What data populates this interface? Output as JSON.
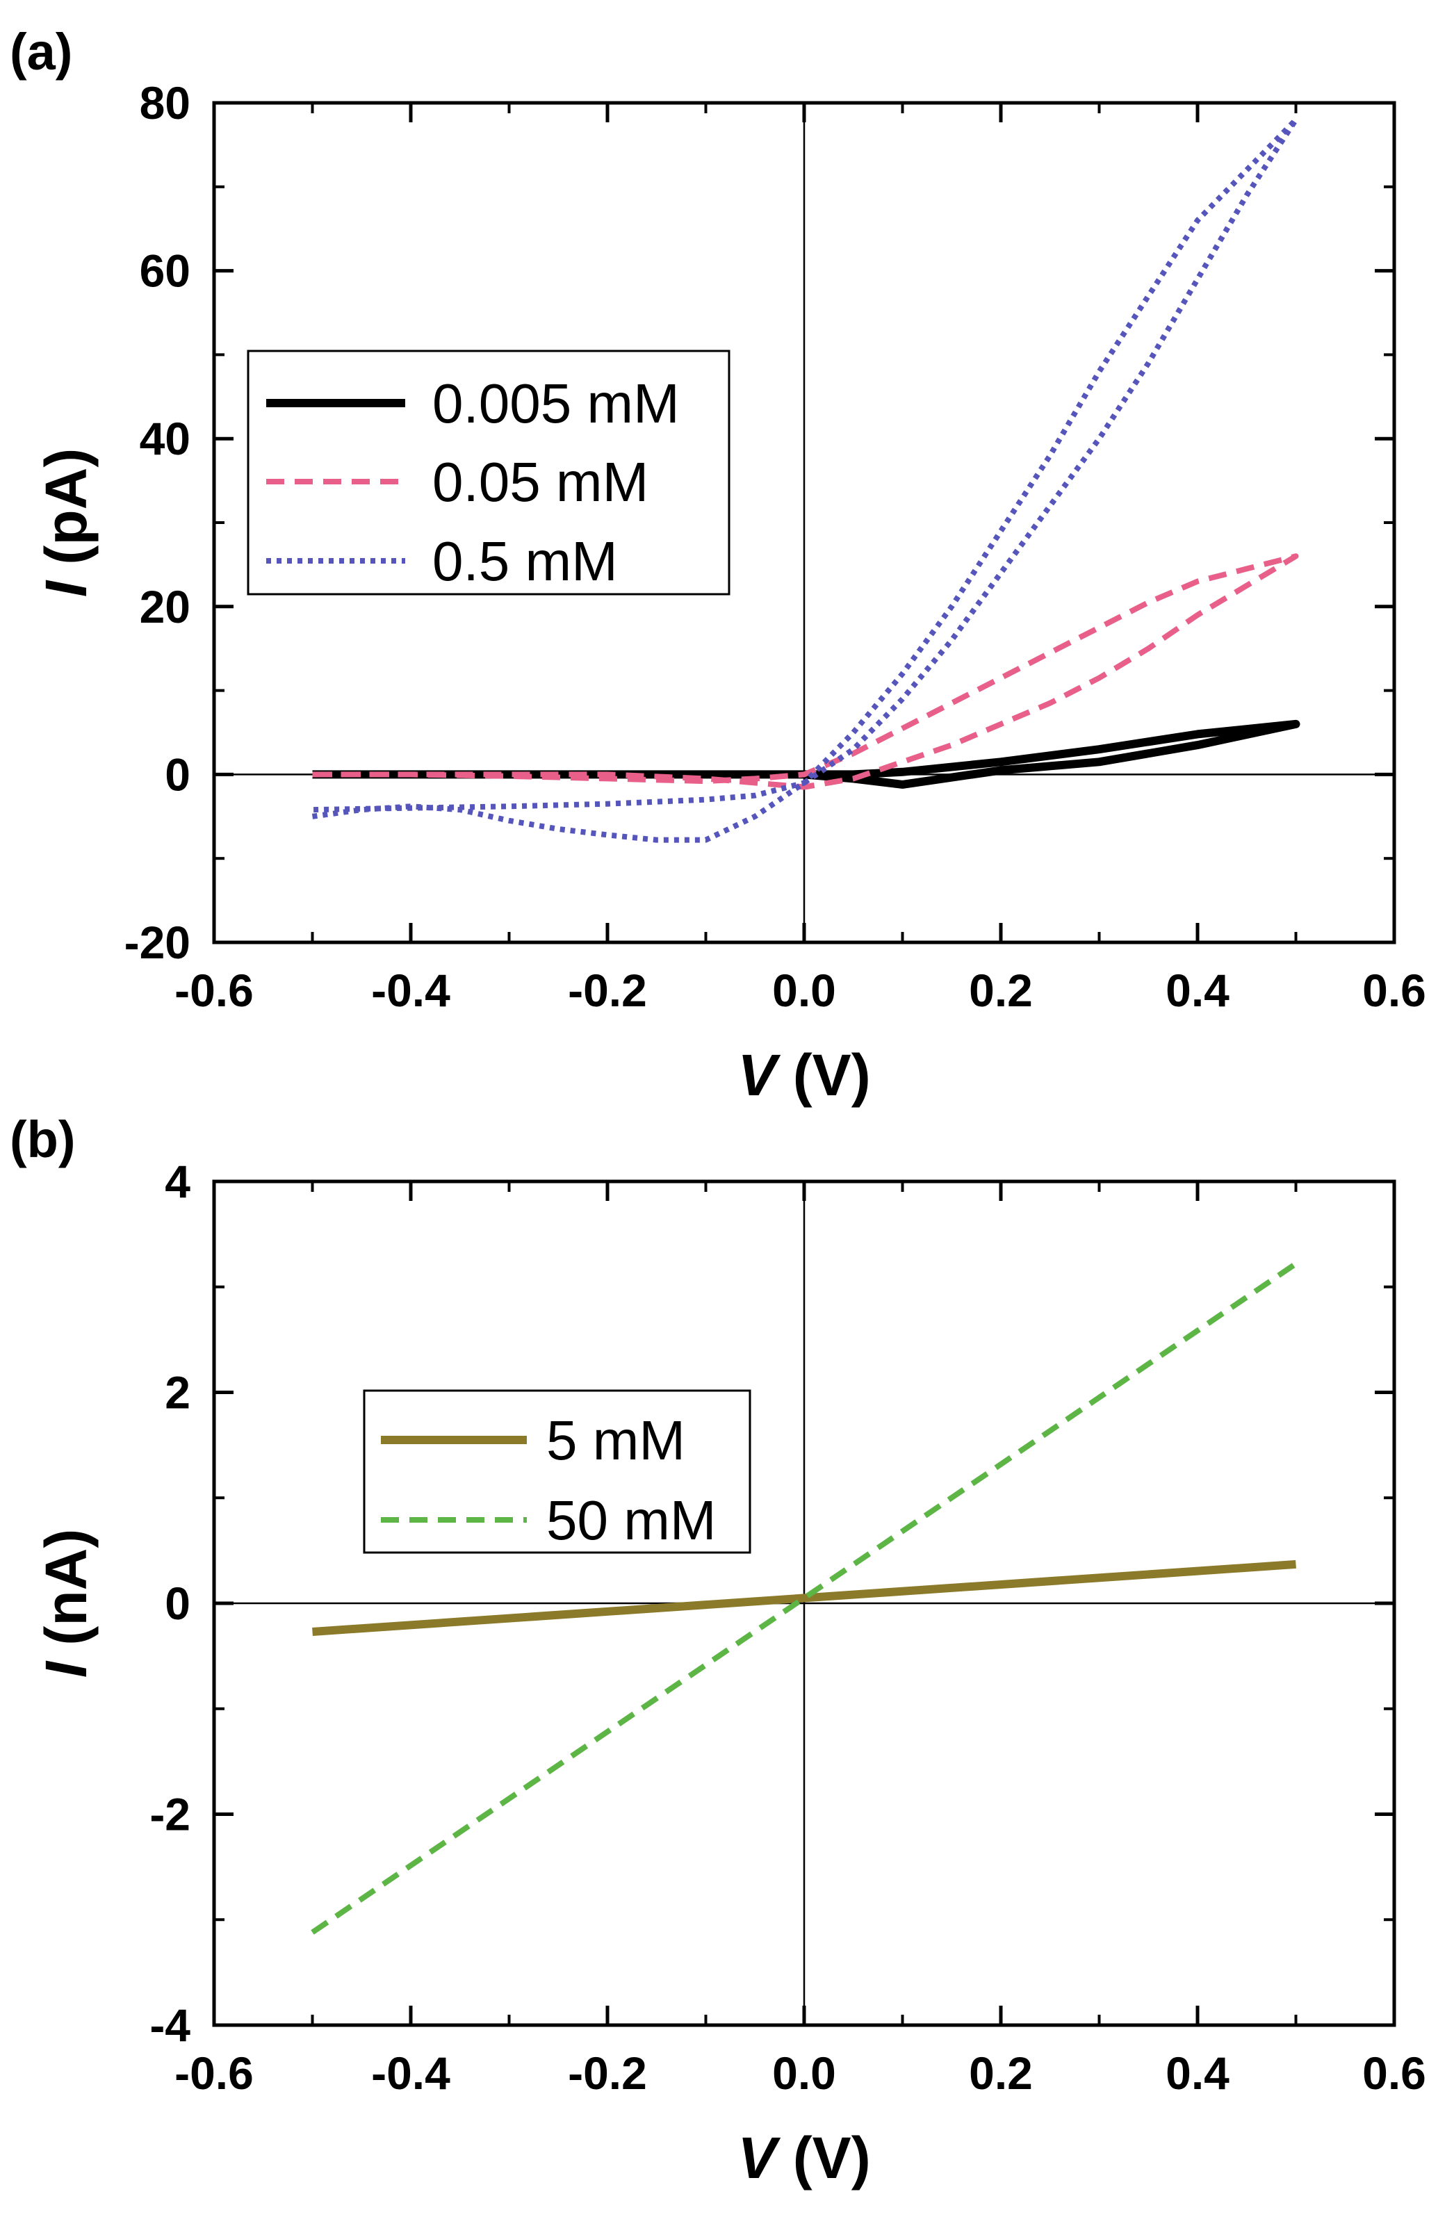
{
  "chart_data": [
    {
      "panel": "(a)",
      "type": "line",
      "xlabel_var": "V",
      "xlabel_unit": " (V)",
      "ylabel_var": "I",
      "ylabel_unit": " (pA)",
      "xlim": [
        -0.6,
        0.6
      ],
      "ylim": [
        -20,
        80
      ],
      "xticks": [
        -0.6,
        -0.4,
        -0.2,
        0.0,
        0.2,
        0.4,
        0.6
      ],
      "xtick_labels": [
        "-0.6",
        "-0.4",
        "-0.2",
        "0.0",
        "0.2",
        "0.4",
        "0.6"
      ],
      "yticks": [
        -20,
        0,
        20,
        40,
        60,
        80
      ],
      "ytick_labels": [
        "-20",
        "0",
        "20",
        "40",
        "60",
        "80"
      ],
      "zero_lines": true,
      "legend_position": "upper-left",
      "series": [
        {
          "name": "0.005 mM",
          "color": "#000000",
          "style": "solid",
          "x": [
            -0.5,
            -0.4,
            -0.3,
            -0.2,
            -0.1,
            0.0,
            0.05,
            0.1,
            0.2,
            0.3,
            0.4,
            0.5,
            0.4,
            0.3,
            0.2,
            0.1,
            0.05,
            0.0,
            -0.1,
            -0.2,
            -0.3,
            -0.4,
            -0.5
          ],
          "y": [
            0,
            0,
            0,
            0,
            0,
            0,
            -0.5,
            -1.2,
            0.5,
            1.5,
            3.5,
            6,
            4.8,
            3,
            1.5,
            0.3,
            0,
            0,
            0,
            0,
            0,
            0,
            0
          ]
        },
        {
          "name": "0.05 mM",
          "color": "#e8608a",
          "style": "dashed",
          "x": [
            -0.5,
            -0.4,
            -0.3,
            -0.2,
            -0.1,
            0.0,
            0.05,
            0.1,
            0.15,
            0.2,
            0.25,
            0.3,
            0.35,
            0.4,
            0.45,
            0.5,
            0.45,
            0.4,
            0.35,
            0.3,
            0.25,
            0.2,
            0.15,
            0.1,
            0.05,
            0.0,
            -0.05,
            -0.1,
            -0.2,
            -0.3,
            -0.4,
            -0.5
          ],
          "y": [
            0,
            0,
            0,
            0,
            -0.5,
            -1.5,
            -0.5,
            1.5,
            3.5,
            6,
            8.5,
            11.5,
            15,
            19,
            22.5,
            26,
            24.5,
            23,
            20.5,
            17.5,
            14.5,
            11.5,
            8.5,
            5.5,
            2.5,
            0,
            -0.5,
            -0.8,
            -0.5,
            -0.2,
            0,
            0
          ]
        },
        {
          "name": "0.5 mM",
          "color": "#5555bb",
          "style": "dotted",
          "x": [
            -0.5,
            -0.45,
            -0.4,
            -0.35,
            -0.3,
            -0.25,
            -0.2,
            -0.15,
            -0.1,
            -0.05,
            0.0,
            0.05,
            0.1,
            0.15,
            0.2,
            0.25,
            0.3,
            0.35,
            0.4,
            0.45,
            0.5,
            0.45,
            0.4,
            0.35,
            0.3,
            0.25,
            0.2,
            0.15,
            0.1,
            0.05,
            0.0,
            -0.05,
            -0.1,
            -0.2,
            -0.3,
            -0.35,
            -0.4,
            -0.5
          ],
          "y": [
            -5,
            -4.2,
            -3.8,
            -4.2,
            -5.5,
            -6.5,
            -7.2,
            -7.8,
            -7.8,
            -5,
            -1,
            3,
            9,
            16,
            24,
            32,
            40,
            49,
            59,
            69,
            78,
            72,
            66,
            57,
            48,
            38,
            29,
            20,
            12,
            5,
            -1,
            -2.5,
            -3,
            -3.5,
            -3.8,
            -3.9,
            -4,
            -4.2
          ]
        }
      ]
    },
    {
      "panel": "(b)",
      "type": "line",
      "xlabel_var": "V",
      "xlabel_unit": " (V)",
      "ylabel_var": "I",
      "ylabel_unit": " (nA)",
      "xlim": [
        -0.6,
        0.6
      ],
      "ylim": [
        -4,
        4
      ],
      "xticks": [
        -0.6,
        -0.4,
        -0.2,
        0.0,
        0.2,
        0.4,
        0.6
      ],
      "xtick_labels": [
        "-0.6",
        "-0.4",
        "-0.2",
        "0.0",
        "0.2",
        "0.4",
        "0.6"
      ],
      "yticks": [
        -4,
        -2,
        0,
        2,
        4
      ],
      "ytick_labels": [
        "-4",
        "-2",
        "0",
        "2",
        "4"
      ],
      "zero_lines": true,
      "legend_position": "center-left",
      "series": [
        {
          "name": "5 mM",
          "color": "#8b7a2a",
          "style": "solid",
          "x": [
            -0.5,
            0.5
          ],
          "y": [
            -0.27,
            0.37
          ]
        },
        {
          "name": "50 mM",
          "color": "#5cb545",
          "style": "dashed",
          "x": [
            -0.5,
            0.5
          ],
          "y": [
            -3.12,
            3.22
          ]
        }
      ]
    }
  ]
}
